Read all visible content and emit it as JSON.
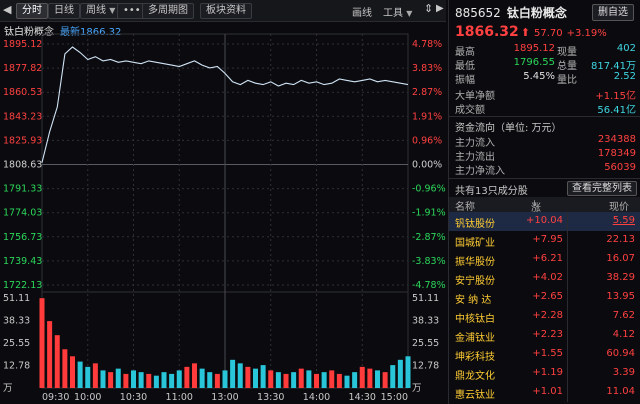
{
  "toolbar": {
    "fenshi": "分时",
    "rixian": "日线",
    "zhouxian": "周线",
    "more": "•••",
    "multi_period": "多周期图",
    "board_info": "板块资料",
    "huaxian": "画线",
    "tools": "工具"
  },
  "chart": {
    "name": "钛白粉概念",
    "latest": "最新1866.32",
    "price_ticks": [
      "1895.12",
      "1877.82",
      "1860.53",
      "1843.23",
      "1825.93",
      "1808.63",
      "1791.33",
      "1774.03",
      "1756.73",
      "1739.43",
      "1722.13"
    ],
    "pct_ticks": [
      "4.78%",
      "3.83%",
      "2.87%",
      "1.91%",
      "0.96%",
      "0.00%",
      "-0.96%",
      "-1.91%",
      "-2.87%",
      "-3.83%",
      "-4.78%"
    ],
    "vol_ticks": [
      "51.11",
      "38.33",
      "25.55",
      "12.78",
      "万"
    ],
    "time_ticks": [
      "09:30",
      "10:00",
      "10:30",
      "11:00",
      "13:00",
      "13:30",
      "14:00",
      "14:30",
      "15:00"
    ],
    "colors": {
      "price_line": "#cfe3f5",
      "up": "#ff3b3b",
      "down": "#28c6d8",
      "grid": "#2f3036"
    },
    "prev_close": 1808.63
  },
  "chart_data": {
    "type": "line",
    "title": "钛白粉概念",
    "x": [
      "09:30",
      "09:35",
      "09:40",
      "09:45",
      "09:50",
      "09:55",
      "10:00",
      "10:05",
      "10:10",
      "10:15",
      "10:20",
      "10:25",
      "10:30",
      "10:35",
      "10:40",
      "10:45",
      "10:50",
      "10:55",
      "11:00",
      "11:05",
      "11:10",
      "11:15",
      "11:20",
      "11:25",
      "11:30",
      "13:05",
      "13:10",
      "13:15",
      "13:20",
      "13:25",
      "13:30",
      "13:35",
      "13:40",
      "13:45",
      "13:50",
      "13:55",
      "14:00",
      "14:05",
      "14:10",
      "14:15",
      "14:20",
      "14:25",
      "14:30",
      "14:35",
      "14:40",
      "14:45",
      "14:50",
      "14:55",
      "15:00"
    ],
    "series": [
      {
        "values": [
          1810,
          1832,
          1850,
          1888,
          1893,
          1889,
          1884,
          1886,
          1883,
          1884,
          1882,
          1883,
          1882,
          1881,
          1883,
          1882,
          1881,
          1880,
          1879,
          1881,
          1883,
          1880,
          1878,
          1879,
          1874,
          1868,
          1866,
          1869,
          1867,
          1866,
          1868,
          1865,
          1867,
          1866,
          1869,
          1867,
          1868,
          1866,
          1867,
          1870,
          1869,
          1868,
          1869,
          1870,
          1868,
          1869,
          1868,
          1867,
          1866
        ]
      }
    ],
    "ylim": [
      1722.13,
      1895.12
    ],
    "volume": [
      51,
      38,
      30,
      22,
      18,
      15,
      12,
      14,
      10,
      9,
      11,
      8,
      10,
      9,
      8,
      7,
      9,
      8,
      10,
      12,
      14,
      11,
      9,
      8,
      10,
      16,
      14,
      12,
      11,
      13,
      10,
      9,
      8,
      9,
      11,
      10,
      8,
      9,
      10,
      8,
      7,
      9,
      12,
      11,
      10,
      9,
      13,
      16,
      18
    ],
    "volume_ylim": [
      0,
      51.11
    ]
  },
  "panel": {
    "code": "885652",
    "name": "钛白粉概念",
    "delete": "删自选",
    "price": "1866.32",
    "arrow": "⬆",
    "change": "57.70",
    "pct": "+3.19%",
    "stats": [
      {
        "l1": "最高",
        "v1": "1895.12",
        "c1": "red",
        "l2": "现量",
        "v2": "402",
        "c2": "cyan"
      },
      {
        "l1": "最低",
        "v1": "1796.55",
        "c1": "grn",
        "l2": "总量",
        "v2": "817.41万",
        "c2": "cyan"
      },
      {
        "l1": "振幅",
        "v1": "5.45%",
        "c1": "wht",
        "l2": "量比",
        "v2": "2.52",
        "c2": "cyan"
      }
    ],
    "big_net_label": "大单净额",
    "big_net": "+1.15亿",
    "turnover_label": "成交额",
    "turnover": "56.41亿",
    "flow_title": "资金流向（单位: 万元）",
    "flow": [
      {
        "l": "主力流入",
        "v": "234388"
      },
      {
        "l": "主力流出",
        "v": "178349"
      },
      {
        "l": "主力净流入",
        "v": "56039"
      }
    ],
    "count_text": "共有13只成分股",
    "view_all": "查看完整列表",
    "col_name": "名称",
    "col_pct": "涨幅%",
    "col_price": "现价",
    "stocks": [
      {
        "name": "钒钛股份",
        "pct": "+10.04",
        "price": "5.59"
      },
      {
        "name": "国城矿业",
        "pct": "+7.95",
        "price": "22.13"
      },
      {
        "name": "振华股份",
        "pct": "+6.21",
        "price": "16.07"
      },
      {
        "name": "安宁股份",
        "pct": "+4.02",
        "price": "38.29"
      },
      {
        "name": "安 纳 达",
        "pct": "+2.65",
        "price": "13.95"
      },
      {
        "name": "中核钛白",
        "pct": "+2.28",
        "price": "7.62"
      },
      {
        "name": "金浦钛业",
        "pct": "+2.23",
        "price": "4.12"
      },
      {
        "name": "坤彩科技",
        "pct": "+1.55",
        "price": "60.94"
      },
      {
        "name": "鼎龙文化",
        "pct": "+1.19",
        "price": "3.39"
      },
      {
        "name": "惠云钛业",
        "pct": "+1.01",
        "price": "11.04"
      }
    ]
  }
}
